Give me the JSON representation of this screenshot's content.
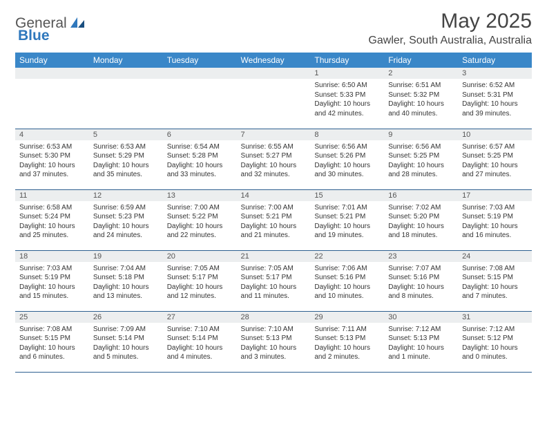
{
  "logo": {
    "text1": "General",
    "text2": "Blue"
  },
  "title": "May 2025",
  "location": "Gawler, South Australia, Australia",
  "colors": {
    "header_bg": "#3a87c8",
    "row_divider": "#2d5f8f",
    "daynum_bg": "#eceeef",
    "logo_blue": "#2f78bd"
  },
  "day_headers": [
    "Sunday",
    "Monday",
    "Tuesday",
    "Wednesday",
    "Thursday",
    "Friday",
    "Saturday"
  ],
  "weeks": [
    [
      {
        "n": "",
        "sr": "",
        "ss": "",
        "dl": ""
      },
      {
        "n": "",
        "sr": "",
        "ss": "",
        "dl": ""
      },
      {
        "n": "",
        "sr": "",
        "ss": "",
        "dl": ""
      },
      {
        "n": "",
        "sr": "",
        "ss": "",
        "dl": ""
      },
      {
        "n": "1",
        "sr": "Sunrise: 6:50 AM",
        "ss": "Sunset: 5:33 PM",
        "dl": "Daylight: 10 hours and 42 minutes."
      },
      {
        "n": "2",
        "sr": "Sunrise: 6:51 AM",
        "ss": "Sunset: 5:32 PM",
        "dl": "Daylight: 10 hours and 40 minutes."
      },
      {
        "n": "3",
        "sr": "Sunrise: 6:52 AM",
        "ss": "Sunset: 5:31 PM",
        "dl": "Daylight: 10 hours and 39 minutes."
      }
    ],
    [
      {
        "n": "4",
        "sr": "Sunrise: 6:53 AM",
        "ss": "Sunset: 5:30 PM",
        "dl": "Daylight: 10 hours and 37 minutes."
      },
      {
        "n": "5",
        "sr": "Sunrise: 6:53 AM",
        "ss": "Sunset: 5:29 PM",
        "dl": "Daylight: 10 hours and 35 minutes."
      },
      {
        "n": "6",
        "sr": "Sunrise: 6:54 AM",
        "ss": "Sunset: 5:28 PM",
        "dl": "Daylight: 10 hours and 33 minutes."
      },
      {
        "n": "7",
        "sr": "Sunrise: 6:55 AM",
        "ss": "Sunset: 5:27 PM",
        "dl": "Daylight: 10 hours and 32 minutes."
      },
      {
        "n": "8",
        "sr": "Sunrise: 6:56 AM",
        "ss": "Sunset: 5:26 PM",
        "dl": "Daylight: 10 hours and 30 minutes."
      },
      {
        "n": "9",
        "sr": "Sunrise: 6:56 AM",
        "ss": "Sunset: 5:25 PM",
        "dl": "Daylight: 10 hours and 28 minutes."
      },
      {
        "n": "10",
        "sr": "Sunrise: 6:57 AM",
        "ss": "Sunset: 5:25 PM",
        "dl": "Daylight: 10 hours and 27 minutes."
      }
    ],
    [
      {
        "n": "11",
        "sr": "Sunrise: 6:58 AM",
        "ss": "Sunset: 5:24 PM",
        "dl": "Daylight: 10 hours and 25 minutes."
      },
      {
        "n": "12",
        "sr": "Sunrise: 6:59 AM",
        "ss": "Sunset: 5:23 PM",
        "dl": "Daylight: 10 hours and 24 minutes."
      },
      {
        "n": "13",
        "sr": "Sunrise: 7:00 AM",
        "ss": "Sunset: 5:22 PM",
        "dl": "Daylight: 10 hours and 22 minutes."
      },
      {
        "n": "14",
        "sr": "Sunrise: 7:00 AM",
        "ss": "Sunset: 5:21 PM",
        "dl": "Daylight: 10 hours and 21 minutes."
      },
      {
        "n": "15",
        "sr": "Sunrise: 7:01 AM",
        "ss": "Sunset: 5:21 PM",
        "dl": "Daylight: 10 hours and 19 minutes."
      },
      {
        "n": "16",
        "sr": "Sunrise: 7:02 AM",
        "ss": "Sunset: 5:20 PM",
        "dl": "Daylight: 10 hours and 18 minutes."
      },
      {
        "n": "17",
        "sr": "Sunrise: 7:03 AM",
        "ss": "Sunset: 5:19 PM",
        "dl": "Daylight: 10 hours and 16 minutes."
      }
    ],
    [
      {
        "n": "18",
        "sr": "Sunrise: 7:03 AM",
        "ss": "Sunset: 5:19 PM",
        "dl": "Daylight: 10 hours and 15 minutes."
      },
      {
        "n": "19",
        "sr": "Sunrise: 7:04 AM",
        "ss": "Sunset: 5:18 PM",
        "dl": "Daylight: 10 hours and 13 minutes."
      },
      {
        "n": "20",
        "sr": "Sunrise: 7:05 AM",
        "ss": "Sunset: 5:17 PM",
        "dl": "Daylight: 10 hours and 12 minutes."
      },
      {
        "n": "21",
        "sr": "Sunrise: 7:05 AM",
        "ss": "Sunset: 5:17 PM",
        "dl": "Daylight: 10 hours and 11 minutes."
      },
      {
        "n": "22",
        "sr": "Sunrise: 7:06 AM",
        "ss": "Sunset: 5:16 PM",
        "dl": "Daylight: 10 hours and 10 minutes."
      },
      {
        "n": "23",
        "sr": "Sunrise: 7:07 AM",
        "ss": "Sunset: 5:16 PM",
        "dl": "Daylight: 10 hours and 8 minutes."
      },
      {
        "n": "24",
        "sr": "Sunrise: 7:08 AM",
        "ss": "Sunset: 5:15 PM",
        "dl": "Daylight: 10 hours and 7 minutes."
      }
    ],
    [
      {
        "n": "25",
        "sr": "Sunrise: 7:08 AM",
        "ss": "Sunset: 5:15 PM",
        "dl": "Daylight: 10 hours and 6 minutes."
      },
      {
        "n": "26",
        "sr": "Sunrise: 7:09 AM",
        "ss": "Sunset: 5:14 PM",
        "dl": "Daylight: 10 hours and 5 minutes."
      },
      {
        "n": "27",
        "sr": "Sunrise: 7:10 AM",
        "ss": "Sunset: 5:14 PM",
        "dl": "Daylight: 10 hours and 4 minutes."
      },
      {
        "n": "28",
        "sr": "Sunrise: 7:10 AM",
        "ss": "Sunset: 5:13 PM",
        "dl": "Daylight: 10 hours and 3 minutes."
      },
      {
        "n": "29",
        "sr": "Sunrise: 7:11 AM",
        "ss": "Sunset: 5:13 PM",
        "dl": "Daylight: 10 hours and 2 minutes."
      },
      {
        "n": "30",
        "sr": "Sunrise: 7:12 AM",
        "ss": "Sunset: 5:13 PM",
        "dl": "Daylight: 10 hours and 1 minute."
      },
      {
        "n": "31",
        "sr": "Sunrise: 7:12 AM",
        "ss": "Sunset: 5:12 PM",
        "dl": "Daylight: 10 hours and 0 minutes."
      }
    ]
  ]
}
